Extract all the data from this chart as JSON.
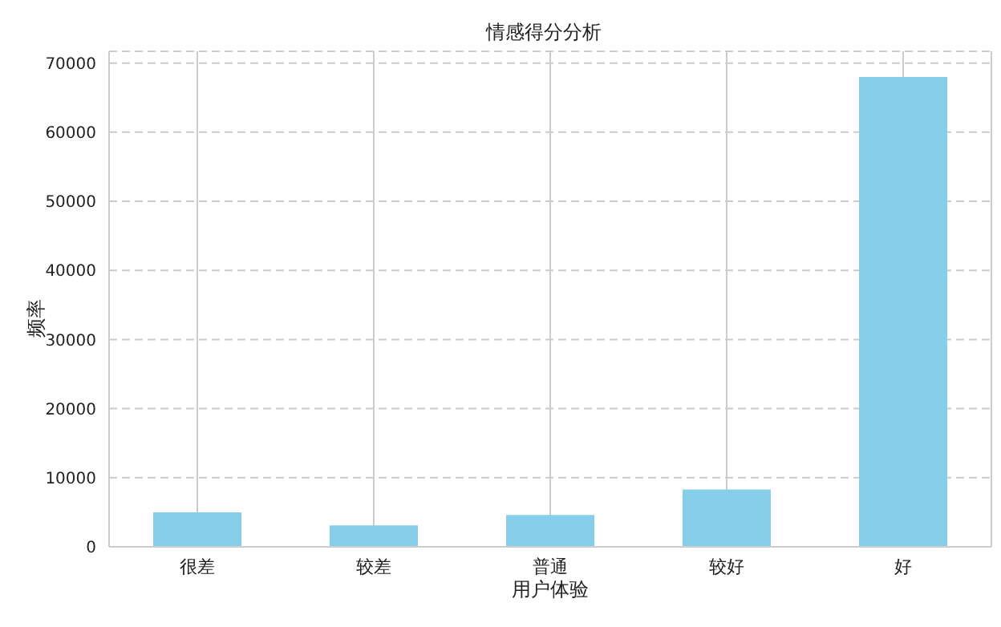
{
  "chart_data": {
    "type": "bar",
    "title": "情感得分分析",
    "xlabel": "用户体验",
    "ylabel": "频率",
    "categories": [
      "很差",
      "较差",
      "普通",
      "较好",
      "好"
    ],
    "values": [
      5000,
      3100,
      4600,
      8300,
      68000
    ],
    "color": "#87ceeb",
    "ylim": [
      0,
      71700
    ],
    "yticks": [
      0,
      10000,
      20000,
      30000,
      40000,
      50000,
      60000,
      70000
    ],
    "grid": true
  }
}
